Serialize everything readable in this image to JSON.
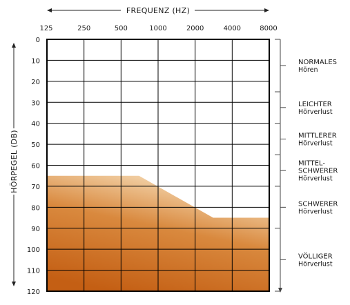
{
  "chart_data": {
    "type": "area",
    "title": "FREQUENZ (HZ)",
    "xlabel": "FREQUENZ (HZ)",
    "ylabel": "HÖRPEGEL (DB)",
    "x_ticks": [
      "125",
      "250",
      "500",
      "1000",
      "2000",
      "4000",
      "8000"
    ],
    "y_ticks": [
      "0",
      "10",
      "20",
      "30",
      "40",
      "50",
      "60",
      "70",
      "80",
      "90",
      "100",
      "110",
      "120"
    ],
    "ylim": [
      0,
      120
    ],
    "y_inverted": true,
    "grid": true,
    "series": [
      {
        "x": [
          125,
          250,
          700,
          2800,
          8000
        ],
        "y": [
          65,
          65,
          65,
          85,
          85
        ]
      }
    ],
    "colors": {
      "fill_top": "#f8e2bf",
      "fill_mid": "#d9893e",
      "fill_bottom": "#c45f14",
      "grid": "#000000"
    }
  },
  "categories": [
    {
      "title": "NORMALES",
      "sub": "Hören",
      "range": [
        0,
        25
      ]
    },
    {
      "title": "LEICHTER",
      "sub": "Hörverlust",
      "range": [
        25,
        40
      ]
    },
    {
      "title": "MITTLERER",
      "sub": "Hörverlust",
      "range": [
        40,
        55
      ]
    },
    {
      "title": "MITTEL-",
      "title2": "SCHWERER",
      "sub": "Hörverlust",
      "range": [
        55,
        70
      ]
    },
    {
      "title": "SCHWERER",
      "sub": "Hörverlust",
      "range": [
        70,
        90
      ]
    },
    {
      "title": "VÖLLIGER",
      "sub": "Hörverlust",
      "range": [
        90,
        120
      ]
    }
  ]
}
